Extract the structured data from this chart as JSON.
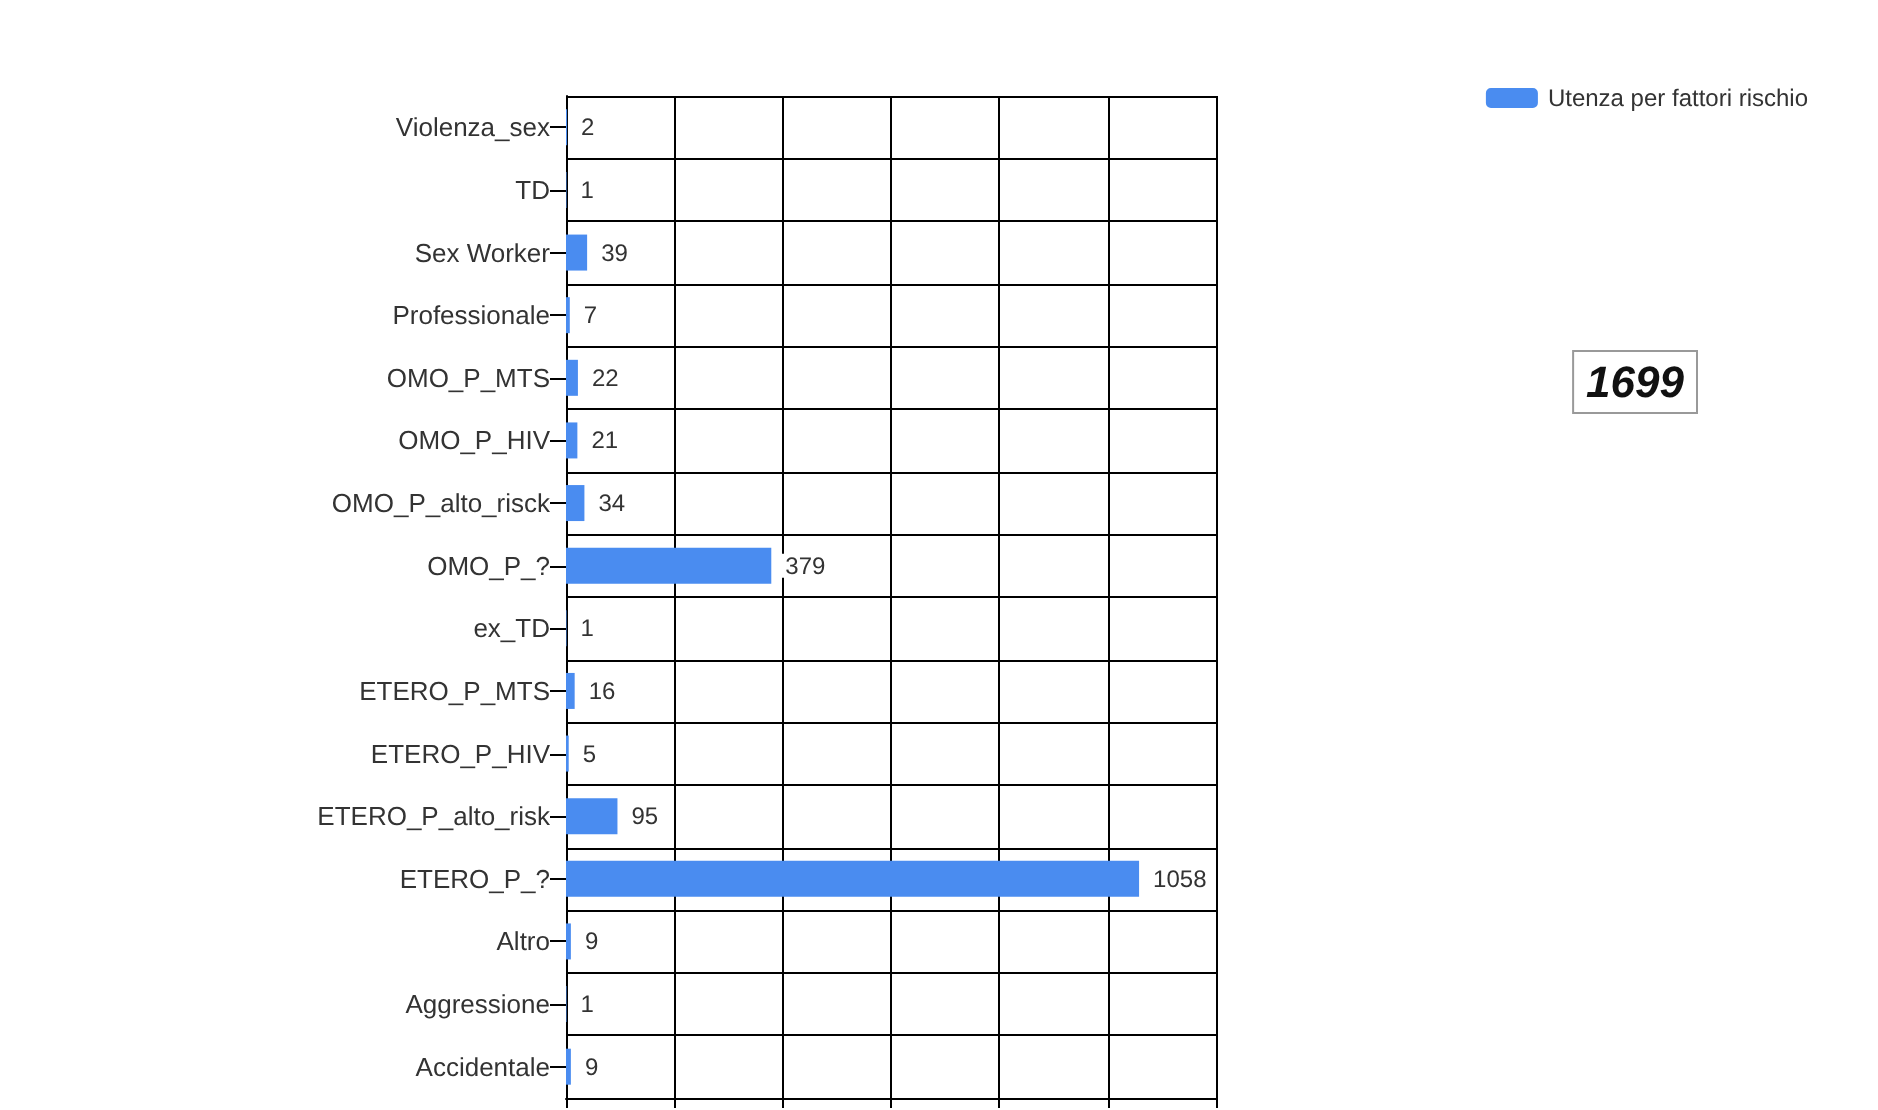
{
  "chart_data": {
    "type": "bar",
    "orientation": "horizontal",
    "categories": [
      "Violenza_sex",
      "TD",
      "Sex Worker",
      "Professionale",
      "OMO_P_MTS",
      "OMO_P_HIV",
      "OMO_P_alto_risck",
      "OMO_P_?",
      "ex_TD",
      "ETERO_P_MTS",
      "ETERO_P_HIV",
      "ETERO_P_alto_risk",
      "ETERO_P_?",
      "Altro",
      "Aggressione",
      "Accidentale"
    ],
    "series": [
      {
        "name": "Utenza per fattori rischio",
        "color": "#4a8cf0",
        "values": [
          2,
          1,
          39,
          7,
          22,
          21,
          34,
          379,
          1,
          16,
          5,
          95,
          1058,
          9,
          1,
          9
        ]
      }
    ],
    "xlim": [
      0,
      1200
    ],
    "xticks": [
      {
        "value": 0,
        "label": null
      },
      {
        "value": 200,
        "label": null
      },
      {
        "value": 400,
        "label": null
      },
      {
        "value": 600,
        "label": null
      },
      {
        "value": 800,
        "label": null
      },
      {
        "value": 1000,
        "label": null
      },
      {
        "value": 1200,
        "label": null
      }
    ],
    "tick_labels": "y",
    "grid": true,
    "legend": "top right",
    "data_labels": true,
    "annotations": [
      "1699"
    ]
  }
}
